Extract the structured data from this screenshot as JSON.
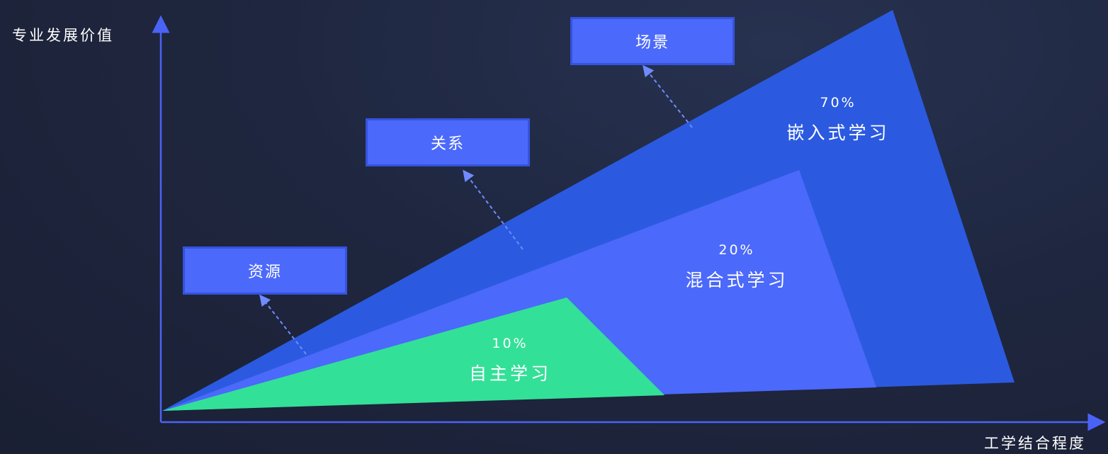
{
  "axes": {
    "y_label": "专业发展价值",
    "x_label": "工学结合程度"
  },
  "stages": [
    {
      "id": "resources",
      "label": "资源"
    },
    {
      "id": "relations",
      "label": "关系"
    },
    {
      "id": "scenarios",
      "label": "场景"
    }
  ],
  "regions": [
    {
      "id": "embedded",
      "percent": "70%",
      "name": "嵌入式学习",
      "color": "#2b5ae0"
    },
    {
      "id": "blended",
      "percent": "20%",
      "name": "混合式学习",
      "color": "#4b69fa"
    },
    {
      "id": "self",
      "percent": "10%",
      "name": "自主学习",
      "color": "#33e098"
    }
  ],
  "colors": {
    "axis": "#4a63f5",
    "arrow": "#6f8bff",
    "box_fill": "#4b69fa",
    "box_border": "#3553dc"
  }
}
